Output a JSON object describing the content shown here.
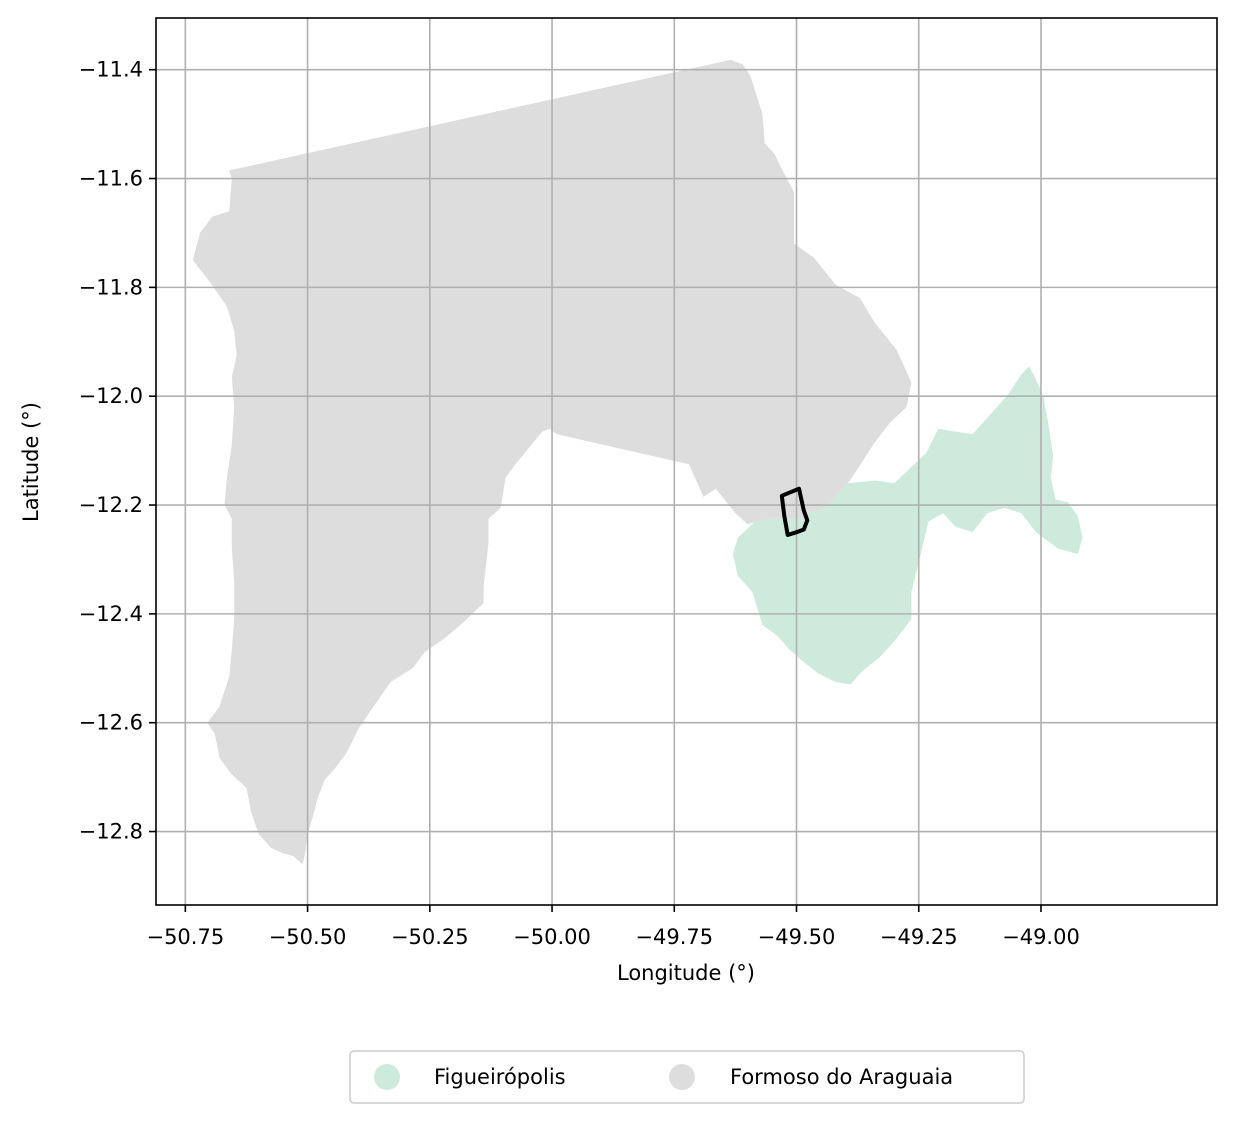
{
  "map": {
    "xlabel": "Longitude (°)",
    "ylabel": "Latitude (°)",
    "xlim": [
      -50.81,
      -48.64
    ],
    "ylim": [
      -12.935,
      -11.305
    ],
    "grid": true,
    "x_ticks": [
      -50.75,
      -50.5,
      -50.25,
      -50.0,
      -49.75,
      -49.5,
      -49.25,
      -49.0
    ],
    "x_tick_labels": [
      "−50.75",
      "−50.50",
      "−50.25",
      "−50.00",
      "−49.75",
      "−49.50",
      "−49.25",
      "−49.00"
    ],
    "y_ticks": [
      -11.4,
      -11.6,
      -11.8,
      -12.0,
      -12.2,
      -12.4,
      -12.6,
      -12.8
    ],
    "y_tick_labels": [
      "−11.4",
      "−11.6",
      "−11.8",
      "−12.0",
      "−12.2",
      "−12.4",
      "−12.6",
      "−12.8"
    ],
    "legend_position": "below",
    "regions": [
      {
        "name": "Formoso do Araguaia",
        "color": "#dddddd",
        "coords": [
          [
            -50.66,
            -11.585
          ],
          [
            -49.675,
            -11.39
          ],
          [
            -49.635,
            -11.382
          ],
          [
            -49.61,
            -11.39
          ],
          [
            -49.595,
            -11.41
          ],
          [
            -49.57,
            -11.48
          ],
          [
            -49.565,
            -11.535
          ],
          [
            -49.545,
            -11.555
          ],
          [
            -49.52,
            -11.6
          ],
          [
            -49.505,
            -11.625
          ],
          [
            -49.505,
            -11.72
          ],
          [
            -49.465,
            -11.745
          ],
          [
            -49.42,
            -11.795
          ],
          [
            -49.37,
            -11.82
          ],
          [
            -49.34,
            -11.865
          ],
          [
            -49.295,
            -11.915
          ],
          [
            -49.265,
            -11.975
          ],
          [
            -49.275,
            -12.02
          ],
          [
            -49.31,
            -12.05
          ],
          [
            -49.34,
            -12.085
          ],
          [
            -49.365,
            -12.12
          ],
          [
            -49.395,
            -12.16
          ],
          [
            -49.44,
            -12.205
          ],
          [
            -49.475,
            -12.215
          ],
          [
            -49.49,
            -12.225
          ],
          [
            -49.555,
            -12.225
          ],
          [
            -49.6,
            -12.235
          ],
          [
            -49.625,
            -12.215
          ],
          [
            -49.665,
            -12.17
          ],
          [
            -49.69,
            -12.185
          ],
          [
            -49.72,
            -12.125
          ],
          [
            -49.99,
            -12.07
          ],
          [
            -50.005,
            -12.06
          ],
          [
            -50.02,
            -12.065
          ],
          [
            -50.075,
            -12.125
          ],
          [
            -50.095,
            -12.15
          ],
          [
            -50.105,
            -12.205
          ],
          [
            -50.13,
            -12.225
          ],
          [
            -50.13,
            -12.27
          ],
          [
            -50.135,
            -12.31
          ],
          [
            -50.14,
            -12.35
          ],
          [
            -50.14,
            -12.38
          ],
          [
            -50.18,
            -12.415
          ],
          [
            -50.22,
            -12.445
          ],
          [
            -50.26,
            -12.47
          ],
          [
            -50.285,
            -12.5
          ],
          [
            -50.33,
            -12.525
          ],
          [
            -50.365,
            -12.57
          ],
          [
            -50.395,
            -12.61
          ],
          [
            -50.42,
            -12.655
          ],
          [
            -50.445,
            -12.685
          ],
          [
            -50.465,
            -12.705
          ],
          [
            -50.48,
            -12.74
          ],
          [
            -50.49,
            -12.775
          ],
          [
            -50.5,
            -12.805
          ],
          [
            -50.505,
            -12.84
          ],
          [
            -50.51,
            -12.86
          ],
          [
            -50.53,
            -12.845
          ],
          [
            -50.55,
            -12.84
          ],
          [
            -50.575,
            -12.83
          ],
          [
            -50.6,
            -12.805
          ],
          [
            -50.615,
            -12.765
          ],
          [
            -50.625,
            -12.72
          ],
          [
            -50.655,
            -12.695
          ],
          [
            -50.68,
            -12.665
          ],
          [
            -50.69,
            -12.62
          ],
          [
            -50.705,
            -12.6
          ],
          [
            -50.68,
            -12.57
          ],
          [
            -50.66,
            -12.515
          ],
          [
            -50.655,
            -12.465
          ],
          [
            -50.65,
            -12.41
          ],
          [
            -50.65,
            -12.34
          ],
          [
            -50.655,
            -12.28
          ],
          [
            -50.655,
            -12.225
          ],
          [
            -50.67,
            -12.2
          ],
          [
            -50.665,
            -12.15
          ],
          [
            -50.655,
            -12.09
          ],
          [
            -50.65,
            -12.02
          ],
          [
            -50.655,
            -11.965
          ],
          [
            -50.645,
            -11.925
          ],
          [
            -50.65,
            -11.88
          ],
          [
            -50.665,
            -11.835
          ],
          [
            -50.7,
            -11.79
          ],
          [
            -50.735,
            -11.75
          ],
          [
            -50.72,
            -11.7
          ],
          [
            -50.695,
            -11.67
          ],
          [
            -50.66,
            -11.66
          ],
          [
            -50.655,
            -11.6
          ]
        ]
      },
      {
        "name": "Figueirópolis",
        "color": "#cdeadc",
        "coords": [
          [
            -49.585,
            -12.23
          ],
          [
            -49.555,
            -12.225
          ],
          [
            -49.49,
            -12.225
          ],
          [
            -49.475,
            -12.215
          ],
          [
            -49.44,
            -12.205
          ],
          [
            -49.395,
            -12.16
          ],
          [
            -49.34,
            -12.155
          ],
          [
            -49.3,
            -12.16
          ],
          [
            -49.265,
            -12.13
          ],
          [
            -49.235,
            -12.105
          ],
          [
            -49.21,
            -12.06
          ],
          [
            -49.14,
            -12.07
          ],
          [
            -49.1,
            -12.03
          ],
          [
            -49.07,
            -12.0
          ],
          [
            -49.04,
            -11.96
          ],
          [
            -49.025,
            -11.945
          ],
          [
            -49.015,
            -11.96
          ],
          [
            -48.995,
            -12.0
          ],
          [
            -48.985,
            -12.05
          ],
          [
            -48.975,
            -12.11
          ],
          [
            -48.98,
            -12.15
          ],
          [
            -48.97,
            -12.19
          ],
          [
            -48.945,
            -12.195
          ],
          [
            -48.925,
            -12.22
          ],
          [
            -48.915,
            -12.26
          ],
          [
            -48.925,
            -12.29
          ],
          [
            -48.965,
            -12.28
          ],
          [
            -49.01,
            -12.25
          ],
          [
            -49.04,
            -12.215
          ],
          [
            -49.075,
            -12.205
          ],
          [
            -49.11,
            -12.215
          ],
          [
            -49.14,
            -12.25
          ],
          [
            -49.175,
            -12.24
          ],
          [
            -49.2,
            -12.215
          ],
          [
            -49.23,
            -12.23
          ],
          [
            -49.25,
            -12.305
          ],
          [
            -49.265,
            -12.36
          ],
          [
            -49.265,
            -12.41
          ],
          [
            -49.3,
            -12.45
          ],
          [
            -49.33,
            -12.48
          ],
          [
            -49.365,
            -12.505
          ],
          [
            -49.39,
            -12.53
          ],
          [
            -49.42,
            -12.525
          ],
          [
            -49.455,
            -12.51
          ],
          [
            -49.49,
            -12.485
          ],
          [
            -49.515,
            -12.465
          ],
          [
            -49.54,
            -12.44
          ],
          [
            -49.57,
            -12.42
          ],
          [
            -49.59,
            -12.36
          ],
          [
            -49.62,
            -12.33
          ],
          [
            -49.63,
            -12.29
          ],
          [
            -49.62,
            -12.26
          ]
        ]
      }
    ],
    "outline": {
      "name": "boundary-outline",
      "color": "#000000",
      "coords": [
        [
          -49.53,
          -12.183
        ],
        [
          -49.495,
          -12.17
        ],
        [
          -49.485,
          -12.21
        ],
        [
          -49.478,
          -12.228
        ],
        [
          -49.485,
          -12.245
        ],
        [
          -49.5,
          -12.25
        ],
        [
          -49.518,
          -12.255
        ],
        [
          -49.525,
          -12.22
        ]
      ]
    }
  },
  "legend": [
    {
      "label": "Figueirópolis",
      "color": "#cdeadc"
    },
    {
      "label": "Formoso do Araguaia",
      "color": "#dddddd"
    }
  ]
}
